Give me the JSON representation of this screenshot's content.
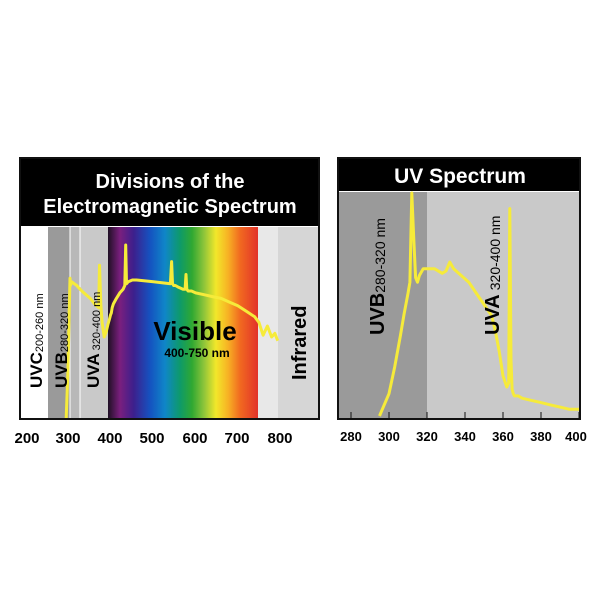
{
  "chart_data": [
    {
      "type": "line",
      "title": "Divisions of the Electromagnetic Spectrum",
      "xlabel": "",
      "ylabel": "",
      "xlim": [
        200,
        800
      ],
      "x_ticks": [
        "200",
        "300",
        "400",
        "500",
        "600",
        "700",
        "800"
      ],
      "grid": false,
      "bands": [
        {
          "name": "UVC",
          "range_label": "200-260 nm",
          "from": 200,
          "to": 260
        },
        {
          "name": "UVB",
          "range_label": "280-320 nm",
          "from": 280,
          "to": 320
        },
        {
          "name": "UVA",
          "range_label": "320-400 nm",
          "from": 320,
          "to": 400
        },
        {
          "name": "Visible",
          "range_label": "400-750 nm",
          "from": 400,
          "to": 750
        },
        {
          "name": "Infrared",
          "range_label": "",
          "from": 790,
          "to": 800
        }
      ],
      "series": [
        {
          "color": "#f6eb3a",
          "x": [
            293,
            297,
            300,
            302,
            303,
            306,
            312,
            318,
            322,
            330,
            340,
            350,
            360,
            370,
            372,
            375,
            378,
            383,
            388,
            392,
            396,
            398,
            400,
            402,
            405,
            412,
            420,
            428,
            432,
            434,
            436,
            440,
            450,
            460,
            480,
            500,
            520,
            540,
            543,
            545,
            548,
            552,
            560,
            570,
            575,
            577,
            579,
            582,
            590,
            600,
            620,
            640,
            660,
            680,
            700,
            720,
            740,
            750,
            760,
            770,
            780,
            788,
            793,
            795
          ],
          "y": [
            0.0,
            0.25,
            0.58,
            0.76,
            0.72,
            0.74,
            0.73,
            0.72,
            0.71,
            0.69,
            0.67,
            0.65,
            0.62,
            0.6,
            0.83,
            0.62,
            0.52,
            0.44,
            0.47,
            0.51,
            0.54,
            0.56,
            0.57,
            0.6,
            0.62,
            0.65,
            0.68,
            0.7,
            0.72,
            0.94,
            0.73,
            0.74,
            0.75,
            0.75,
            0.745,
            0.74,
            0.735,
            0.73,
            0.85,
            0.73,
            0.72,
            0.72,
            0.71,
            0.7,
            0.7,
            0.78,
            0.7,
            0.69,
            0.69,
            0.68,
            0.67,
            0.66,
            0.65,
            0.63,
            0.61,
            0.58,
            0.55,
            0.52,
            0.45,
            0.5,
            0.44,
            0.46,
            0.43,
            0.42
          ]
        }
      ]
    },
    {
      "type": "line",
      "title": "UV Spectrum",
      "xlabel": "",
      "ylabel": "",
      "xlim": [
        280,
        400
      ],
      "x_ticks": [
        "280",
        "300",
        "320",
        "340",
        "360",
        "380",
        "400"
      ],
      "grid": false,
      "bands": [
        {
          "name": "UVB",
          "range_label": "280-320 nm",
          "from": 280,
          "to": 320
        },
        {
          "name": "UVA",
          "range_label": "320-400 nm",
          "from": 320,
          "to": 400
        }
      ],
      "series": [
        {
          "color": "#f6eb3a",
          "x": [
            295,
            300,
            303,
            306,
            308,
            310,
            311,
            312,
            313,
            314,
            315,
            316,
            318,
            320,
            324,
            328,
            330,
            332,
            334,
            338,
            342,
            346,
            350,
            354,
            356,
            358,
            360,
            362,
            363,
            363.6,
            364.2,
            364.8,
            365.4,
            366,
            367,
            368,
            370,
            375,
            380,
            385,
            390,
            395,
            400
          ],
          "y": [
            0.0,
            0.1,
            0.22,
            0.36,
            0.46,
            0.55,
            0.6,
            1.0,
            0.8,
            0.62,
            0.6,
            0.63,
            0.66,
            0.66,
            0.66,
            0.64,
            0.65,
            0.69,
            0.66,
            0.63,
            0.6,
            0.55,
            0.5,
            0.45,
            0.38,
            0.29,
            0.18,
            0.13,
            0.15,
            0.93,
            0.25,
            0.12,
            0.1,
            0.09,
            0.09,
            0.09,
            0.08,
            0.07,
            0.06,
            0.05,
            0.04,
            0.03,
            0.03
          ]
        }
      ]
    }
  ]
}
